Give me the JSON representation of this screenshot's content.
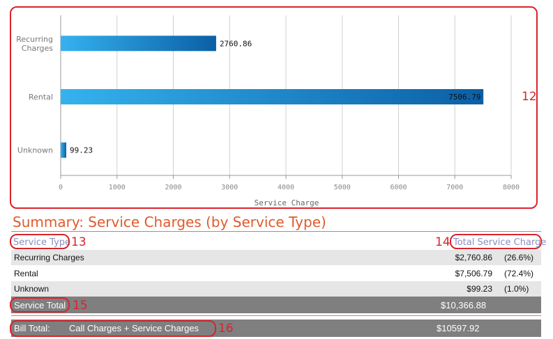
{
  "chart_data": {
    "type": "bar",
    "orientation": "horizontal",
    "categories": [
      "Recurring Charges",
      "Rental",
      "Unknown"
    ],
    "category_lines": [
      [
        "Recurring",
        "Charges"
      ],
      [
        "Rental"
      ],
      [
        "Unknown"
      ]
    ],
    "values": [
      2760.86,
      7506.79,
      99.23
    ],
    "value_labels": [
      "2760.86",
      "7506.79",
      "99.23"
    ],
    "xlabel": "Service Charge",
    "xlim": [
      0,
      8000
    ],
    "xticks": [
      0,
      1000,
      2000,
      3000,
      4000,
      5000,
      6000,
      7000,
      8000
    ],
    "grid": true,
    "bar_color_start": "#35b2ef",
    "bar_color_end": "#0b5fa5"
  },
  "annotations": {
    "chart": "12",
    "service_type": "13",
    "total_service_charge": "14",
    "service_total": "15",
    "bill_total": "16"
  },
  "summary": {
    "title": "Summary: Service Charges (by Service Type)",
    "col_service_type": "Service Type",
    "col_total": "Total Service Charge",
    "rows": [
      {
        "name": "Recurring Charges",
        "amount": "$2,760.86",
        "pct": "(26.6%)"
      },
      {
        "name": "Rental",
        "amount": "$7,506.79",
        "pct": "(72.4%)"
      },
      {
        "name": "Unknown",
        "amount": "$99.23",
        "pct": "(1.0%)"
      }
    ],
    "service_total_label": "Service Total",
    "service_total_value": "$10,366.88",
    "bill_total_label": "Bill Total:",
    "bill_total_desc": "Call Charges + Service Charges",
    "bill_total_value": "$10597.92"
  },
  "colors": {
    "accent": "#e05a2b",
    "annotation": "#d9232d",
    "header_text": "#8a8fc0",
    "total_bar": "#7f7f7f",
    "row_alt": "#e6e6e6"
  }
}
